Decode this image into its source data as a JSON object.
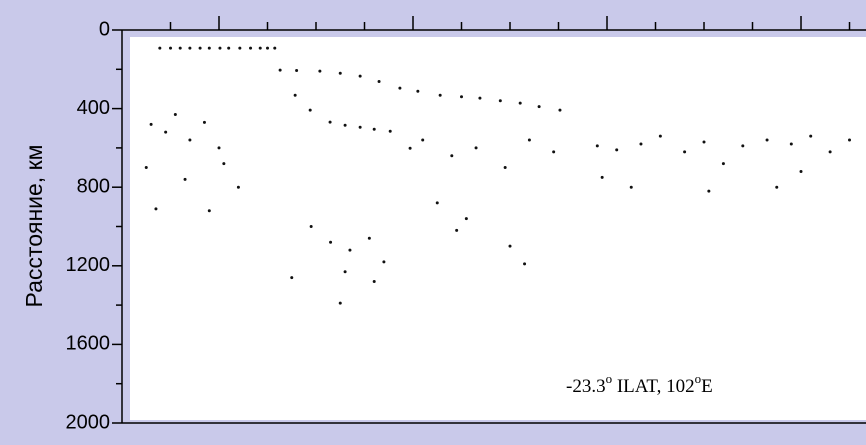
{
  "chart_data": {
    "type": "scatter",
    "ylabel": "Расстояние, км",
    "annotation": [
      {
        "text": "-23.3",
        "sup": false
      },
      {
        "text": "o",
        "sup": true
      },
      {
        "text": " ILAT, 102",
        "sup": false
      },
      {
        "text": "o",
        "sup": true
      },
      {
        "text": "E",
        "sup": false
      }
    ],
    "xlim": [
      0,
      15.34
    ],
    "xticks": [
      1,
      2,
      3,
      4,
      5,
      6,
      7,
      8,
      9,
      10,
      11,
      12,
      13,
      14,
      15
    ],
    "xticks_major": [
      2,
      6,
      10,
      14
    ],
    "ylim": [
      0,
      2000
    ],
    "y_inverted": true,
    "yticks": [
      0,
      400,
      800,
      1200,
      1600,
      2000
    ],
    "yminorticks": [
      200,
      600,
      1000,
      1400,
      1800
    ],
    "color": "#111111",
    "series": [
      {
        "x": [
          0.78,
          1.0,
          1.2,
          1.4,
          1.61,
          1.8,
          2.02,
          2.2,
          2.43,
          2.65,
          2.85,
          3.0,
          3.15,
          3.26,
          3.6,
          4.08,
          4.5,
          4.91,
          5.3,
          5.73,
          6.1,
          6.56,
          7.0,
          7.38,
          7.8,
          8.21,
          8.6,
          9.03,
          3.57,
          3.88,
          4.29,
          4.6,
          4.91,
          5.2,
          5.53,
          5.94,
          0.6,
          0.9,
          1.1,
          1.4,
          1.7,
          2.0,
          0.5,
          1.3,
          2.1,
          0.7,
          1.8,
          2.4,
          3.9,
          4.3,
          4.7,
          5.1,
          5.4,
          3.5,
          4.6,
          5.2,
          4.5,
          6.2,
          6.8,
          7.3,
          7.9,
          8.4,
          8.9,
          6.5,
          7.1,
          8.0,
          8.3,
          6.9,
          9.8,
          10.2,
          10.7,
          9.9,
          10.5,
          11.1,
          11.6,
          12.0,
          12.4,
          12.8,
          12.1,
          13.3,
          13.8,
          14.2,
          14.6,
          14.0,
          15.0,
          13.5
        ],
        "values": [
          92,
          92,
          92,
          92,
          92,
          92,
          92,
          92,
          92,
          92,
          92,
          92,
          92,
          204,
          206,
          209,
          220,
          235,
          262,
          296,
          312,
          332,
          340,
          347,
          360,
          372,
          390,
          408,
          332,
          408,
          469,
          485,
          495,
          505,
          515,
          602,
          480,
          520,
          430,
          560,
          470,
          600,
          700,
          760,
          680,
          910,
          920,
          800,
          1000,
          1080,
          1120,
          1060,
          1180,
          1260,
          1230,
          1280,
          1390,
          560,
          640,
          600,
          700,
          560,
          620,
          880,
          960,
          1100,
          1190,
          1020,
          590,
          610,
          580,
          750,
          800,
          540,
          620,
          570,
          680,
          590,
          820,
          560,
          580,
          540,
          620,
          720,
          560,
          800
        ]
      }
    ]
  }
}
